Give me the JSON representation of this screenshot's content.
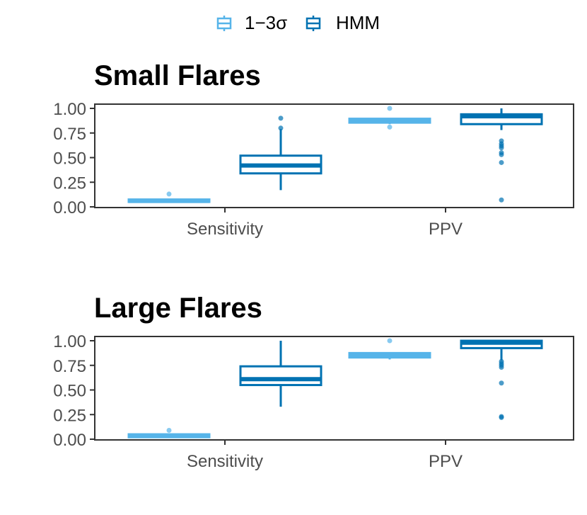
{
  "legend": {
    "items": [
      {
        "label": "1−3σ",
        "color": "#56B4E9"
      },
      {
        "label": "HMM",
        "color": "#0072B2"
      }
    ]
  },
  "chart_data": [
    {
      "type": "boxplot",
      "title": "Small Flares",
      "categories": [
        "Sensitivity",
        "PPV"
      ],
      "ylim": [
        0,
        1
      ],
      "y_ticks": [
        "0.00",
        "0.25",
        "0.50",
        "0.75",
        "1.00"
      ],
      "series": [
        {
          "name": "1−3σ",
          "boxes": [
            {
              "category": "Sensitivity",
              "q1": 0.05,
              "median": 0.06,
              "q3": 0.075,
              "whisker_low": 0.05,
              "whisker_high": 0.08,
              "outliers": [
                0.13
              ]
            },
            {
              "category": "PPV",
              "q1": 0.855,
              "median": 0.87,
              "q3": 0.895,
              "whisker_low": 0.84,
              "whisker_high": 0.9,
              "outliers": [
                0.81,
                1.0
              ]
            }
          ]
        },
        {
          "name": "HMM",
          "boxes": [
            {
              "category": "Sensitivity",
              "q1": 0.34,
              "median": 0.42,
              "q3": 0.52,
              "whisker_low": 0.17,
              "whisker_high": 0.79,
              "outliers": [
                0.8,
                0.9
              ]
            },
            {
              "category": "PPV",
              "q1": 0.84,
              "median": 0.92,
              "q3": 0.94,
              "whisker_low": 0.78,
              "whisker_high": 1.0,
              "outliers": [
                0.67,
                0.64,
                0.62,
                0.6,
                0.55,
                0.53,
                0.45,
                0.07
              ]
            }
          ]
        }
      ]
    },
    {
      "type": "boxplot",
      "title": "Large Flares",
      "categories": [
        "Sensitivity",
        "PPV"
      ],
      "ylim": [
        0,
        1
      ],
      "y_ticks": [
        "0.00",
        "0.25",
        "0.50",
        "0.75",
        "1.00"
      ],
      "series": [
        {
          "name": "1−3σ",
          "boxes": [
            {
              "category": "Sensitivity",
              "q1": 0.02,
              "median": 0.035,
              "q3": 0.05,
              "whisker_low": 0.02,
              "whisker_high": 0.05,
              "outliers": [
                0.09
              ]
            },
            {
              "category": "PPV",
              "q1": 0.83,
              "median": 0.85,
              "q3": 0.875,
              "whisker_low": 0.81,
              "whisker_high": 0.88,
              "outliers": [
                1.0
              ]
            }
          ]
        },
        {
          "name": "HMM",
          "boxes": [
            {
              "category": "Sensitivity",
              "q1": 0.55,
              "median": 0.61,
              "q3": 0.74,
              "whisker_low": 0.33,
              "whisker_high": 1.0,
              "outliers": []
            },
            {
              "category": "PPV",
              "q1": 0.925,
              "median": 0.98,
              "q3": 1.0,
              "whisker_low": 0.8,
              "whisker_high": 1.0,
              "outliers": [
                0.79,
                0.77,
                0.75,
                0.73,
                0.57,
                0.23,
                0.22
              ]
            }
          ]
        }
      ]
    }
  ]
}
